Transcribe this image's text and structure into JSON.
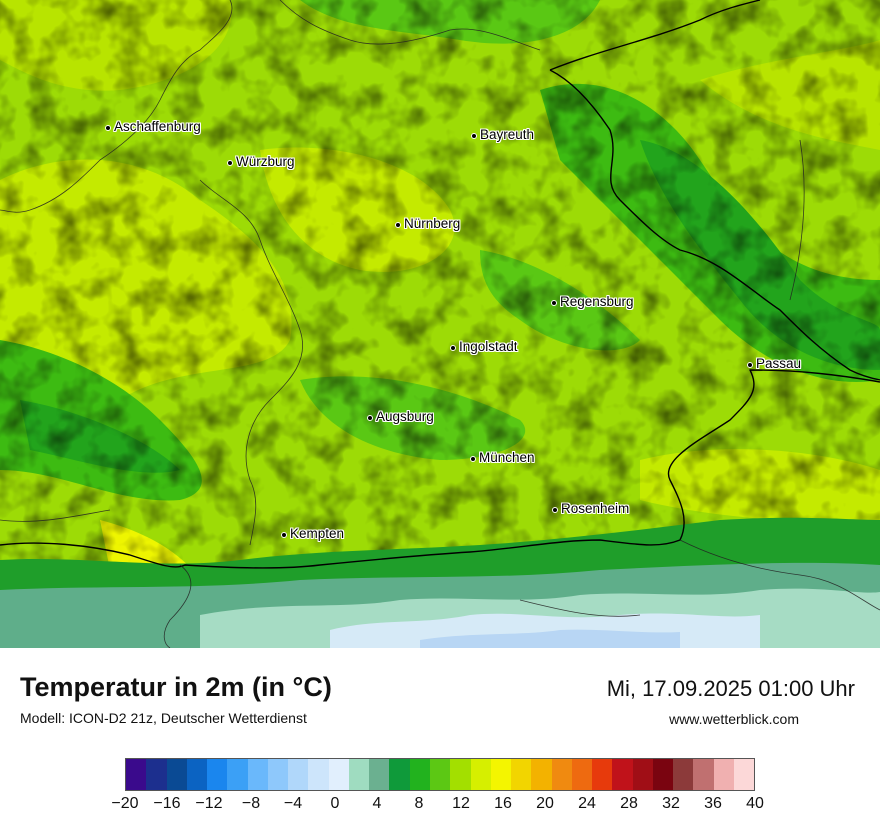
{
  "map": {
    "cities": [
      {
        "name": "Aschaffenburg"
      },
      {
        "name": "Würzburg"
      },
      {
        "name": "Bayreuth"
      },
      {
        "name": "Nürnberg"
      },
      {
        "name": "Regensburg"
      },
      {
        "name": "Ingolstadt"
      },
      {
        "name": "Passau"
      },
      {
        "name": "Augsburg"
      },
      {
        "name": "München"
      },
      {
        "name": "Rosenheim"
      },
      {
        "name": "Kempten"
      }
    ]
  },
  "legend": {
    "title": "Temperatur in 2m (in °C)",
    "subtitle": "Modell: ICON-D2 21z, Deutscher Wetterdienst",
    "datetime": "Mi, 17.09.2025 01:00 Uhr",
    "website": "www.wetterblick.com",
    "tick_labels": [
      "−20",
      "−16",
      "−12",
      "−8",
      "−4",
      "0",
      "4",
      "8",
      "12",
      "16",
      "20",
      "24",
      "28",
      "32",
      "36",
      "40"
    ],
    "colors": [
      "#3a0a8c",
      "#1c2f8e",
      "#0a4a94",
      "#0b63c2",
      "#1a86ee",
      "#3ba0f6",
      "#6ab8fb",
      "#8ec8fb",
      "#b0d7fa",
      "#cde5fb",
      "#e1effd",
      "#9fdcc0",
      "#6bb090",
      "#0f9a3a",
      "#22b21e",
      "#5cc814",
      "#a3df00",
      "#d6ef00",
      "#f4f500",
      "#f2d500",
      "#f3b200",
      "#f08a10",
      "#ee6a10",
      "#e73a0c",
      "#c0121a",
      "#a00e16",
      "#7a0410",
      "#8c3a3a",
      "#c07070",
      "#f0b0b0",
      "#fcd8d8"
    ]
  }
}
